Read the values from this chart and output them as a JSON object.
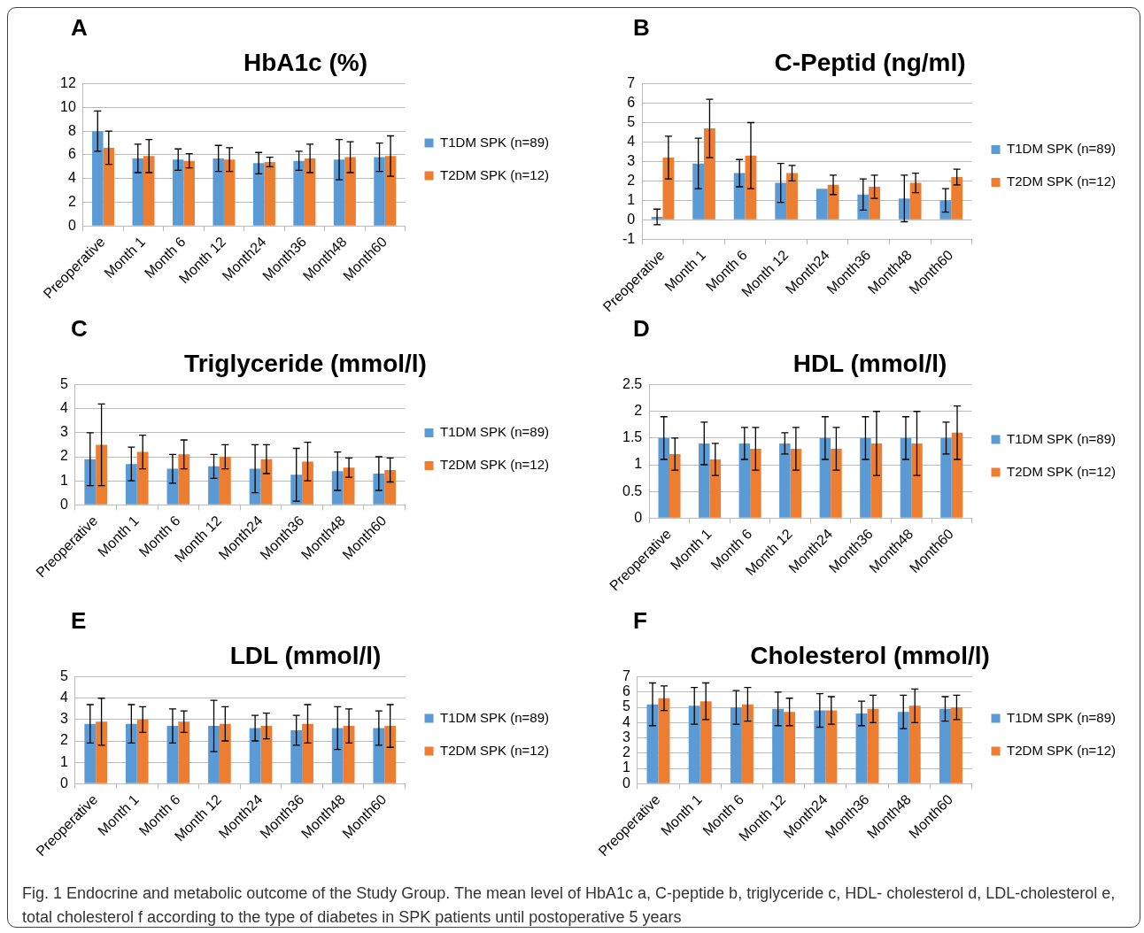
{
  "chart_data": [
    {
      "type": "bar",
      "title": "HbA1c (%)",
      "annotations": [
        "A"
      ],
      "categories": [
        "Preoperative",
        "Month 1",
        "Month 6",
        "Month 12",
        "Month24",
        "Month36",
        "Month48",
        "Month60"
      ],
      "ylim": [
        0,
        12
      ],
      "yticks": [
        0,
        2,
        4,
        6,
        8,
        10,
        12
      ],
      "grid": "y",
      "legend": "right",
      "series": [
        {
          "name": "T1DM SPK (n=89)",
          "color": "#5b9bd5",
          "values": [
            8.0,
            5.7,
            5.6,
            5.7,
            5.3,
            5.5,
            5.6,
            5.8
          ],
          "errors": [
            1.7,
            1.2,
            0.9,
            1.1,
            0.9,
            0.8,
            1.7,
            1.2
          ]
        },
        {
          "name": "T2DM SPK (n=12)",
          "color": "#ed7d31",
          "values": [
            6.6,
            5.9,
            5.5,
            5.6,
            5.4,
            5.7,
            5.8,
            5.9
          ],
          "errors": [
            1.4,
            1.4,
            0.6,
            1.0,
            0.4,
            1.2,
            1.3,
            1.7
          ]
        }
      ]
    },
    {
      "type": "bar",
      "title": "C-Peptid (ng/ml)",
      "annotations": [
        "B"
      ],
      "categories": [
        "Preoperative",
        "Month 1",
        "Month 6",
        "Month 12",
        "Month24",
        "Month36",
        "Month48",
        "Month60"
      ],
      "ylim": [
        -1,
        7
      ],
      "yticks": [
        -1,
        0,
        1,
        2,
        3,
        4,
        5,
        6,
        7
      ],
      "grid": "y",
      "legend": "right",
      "series": [
        {
          "name": "T1DM SPK (n=89)",
          "color": "#5b9bd5",
          "values": [
            0.15,
            2.9,
            2.4,
            1.9,
            1.6,
            1.3,
            1.1,
            1.0
          ],
          "errors": [
            0.4,
            1.3,
            0.7,
            1.0,
            null,
            0.8,
            1.2,
            0.6
          ]
        },
        {
          "name": "T2DM SPK (n=12)",
          "color": "#ed7d31",
          "values": [
            3.2,
            4.7,
            3.3,
            2.4,
            1.8,
            1.7,
            1.9,
            2.2
          ],
          "errors": [
            1.1,
            1.5,
            1.7,
            0.4,
            0.5,
            0.6,
            0.5,
            0.4
          ]
        }
      ]
    },
    {
      "type": "bar",
      "title": "Triglyceride (mmol/l)",
      "annotations": [
        "C"
      ],
      "categories": [
        "Preoperative",
        "Month 1",
        "Month 6",
        "Month 12",
        "Month24",
        "Month36",
        "Month48",
        "Month60"
      ],
      "ylim": [
        0,
        5
      ],
      "yticks": [
        0,
        1,
        2,
        3,
        4,
        5
      ],
      "grid": "y",
      "legend": "right",
      "series": [
        {
          "name": "T1DM SPK (n=89)",
          "color": "#5b9bd5",
          "values": [
            1.9,
            1.7,
            1.5,
            1.6,
            1.5,
            1.25,
            1.4,
            1.3
          ],
          "errors": [
            1.1,
            0.7,
            0.6,
            0.5,
            1.0,
            1.1,
            0.8,
            0.7
          ]
        },
        {
          "name": "T2DM SPK (n=12)",
          "color": "#ed7d31",
          "values": [
            2.5,
            2.2,
            2.1,
            2.0,
            1.9,
            1.8,
            1.55,
            1.45
          ],
          "errors": [
            1.7,
            0.7,
            0.6,
            0.5,
            0.6,
            0.8,
            0.4,
            0.5
          ]
        }
      ]
    },
    {
      "type": "bar",
      "title": "HDL (mmol/l)",
      "annotations": [
        "D"
      ],
      "categories": [
        "Preoperative",
        "Month 1",
        "Month 6",
        "Month 12",
        "Month24",
        "Month36",
        "Month48",
        "Month60"
      ],
      "ylim": [
        0,
        2.5
      ],
      "yticks": [
        0,
        0.5,
        1,
        1.5,
        2,
        2.5
      ],
      "grid": "y",
      "legend": "right",
      "series": [
        {
          "name": "T1DM SPK (n=89)",
          "color": "#5b9bd5",
          "values": [
            1.5,
            1.4,
            1.4,
            1.4,
            1.5,
            1.5,
            1.5,
            1.5
          ],
          "errors": [
            0.4,
            0.4,
            0.3,
            0.2,
            0.4,
            0.4,
            0.4,
            0.3
          ]
        },
        {
          "name": "T2DM SPK (n=12)",
          "color": "#ed7d31",
          "values": [
            1.2,
            1.1,
            1.3,
            1.3,
            1.3,
            1.4,
            1.4,
            1.6
          ],
          "errors": [
            0.3,
            0.3,
            0.4,
            0.4,
            0.4,
            0.6,
            0.6,
            0.5
          ]
        }
      ]
    },
    {
      "type": "bar",
      "title": "LDL (mmol/l)",
      "annotations": [
        "E"
      ],
      "categories": [
        "Preoperative",
        "Month 1",
        "Month 6",
        "Month 12",
        "Month24",
        "Month36",
        "Month48",
        "Month60"
      ],
      "ylim": [
        0,
        5
      ],
      "yticks": [
        0,
        1,
        2,
        3,
        4,
        5
      ],
      "grid": "y",
      "legend": "right",
      "series": [
        {
          "name": "T1DM SPK (n=89)",
          "color": "#5b9bd5",
          "values": [
            2.8,
            2.8,
            2.7,
            2.7,
            2.6,
            2.5,
            2.6,
            2.6
          ],
          "errors": [
            0.9,
            0.9,
            0.8,
            1.2,
            0.6,
            0.7,
            1.0,
            0.8
          ]
        },
        {
          "name": "T2DM SPK (n=12)",
          "color": "#ed7d31",
          "values": [
            2.9,
            3.0,
            2.9,
            2.8,
            2.7,
            2.8,
            2.7,
            2.7
          ],
          "errors": [
            1.1,
            0.6,
            0.5,
            0.8,
            0.6,
            0.9,
            0.8,
            1.0
          ]
        }
      ]
    },
    {
      "type": "bar",
      "title": "Cholesterol (mmol/l)",
      "annotations": [
        "F",
        "Fig. 1 Endocrine and metabolic outcome of the Study Group. The mean level of HbA1c a, C-peptide b, triglyceride c, HDL- cholesterol d, LDL-cholesterol e, total cholesterol f according to the type of diabetes in SPK patients until postoperative 5 years"
      ],
      "categories": [
        "Preoperative",
        "Month 1",
        "Month 6",
        "Month 12",
        "Month24",
        "Month36",
        "Month48",
        "Month60"
      ],
      "ylim": [
        0,
        7
      ],
      "yticks": [
        0,
        1,
        2,
        3,
        4,
        5,
        6,
        7
      ],
      "grid": "y",
      "legend": "right",
      "series": [
        {
          "name": "T1DM SPK (n=89)",
          "color": "#5b9bd5",
          "values": [
            5.2,
            5.1,
            5.0,
            4.9,
            4.8,
            4.6,
            4.7,
            4.9
          ],
          "errors": [
            1.4,
            1.2,
            1.1,
            1.1,
            1.1,
            0.8,
            1.1,
            0.8
          ]
        },
        {
          "name": "T2DM SPK (n=12)",
          "color": "#ed7d31",
          "values": [
            5.6,
            5.4,
            5.2,
            4.7,
            4.8,
            4.9,
            5.1,
            5.0
          ],
          "errors": [
            0.8,
            1.2,
            1.1,
            0.9,
            0.9,
            0.9,
            1.1,
            0.8
          ]
        }
      ]
    }
  ]
}
